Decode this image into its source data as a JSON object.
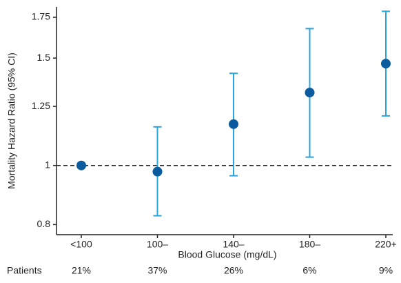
{
  "chart_data": {
    "type": "errorbar",
    "y_label": "Mortality Hazard Ratio (95% CI)",
    "x_label": "Blood Glucose (mg/dL)",
    "categories": [
      "<100",
      "100–",
      "140–",
      "180–",
      "220+"
    ],
    "values": [
      1.0,
      0.977,
      1.169,
      1.317,
      1.469
    ],
    "lower": [
      null,
      0.827,
      0.962,
      1.032,
      1.206
    ],
    "upper": [
      null,
      1.157,
      1.416,
      1.677,
      1.79
    ],
    "color": "#0b5c9e",
    "errorbar_color": "#2aa4dc",
    "ylim": [
      0.77,
      1.82
    ],
    "yticks": [
      0.8,
      1,
      1.25,
      1.5,
      1.75
    ],
    "log_scale": true,
    "reference_line": 1,
    "patients": {
      "label": "Patients",
      "values": [
        21,
        37,
        26,
        6,
        9
      ],
      "value_labels": [
        "21%",
        "37%",
        "26%",
        "6%",
        "9%"
      ]
    }
  }
}
